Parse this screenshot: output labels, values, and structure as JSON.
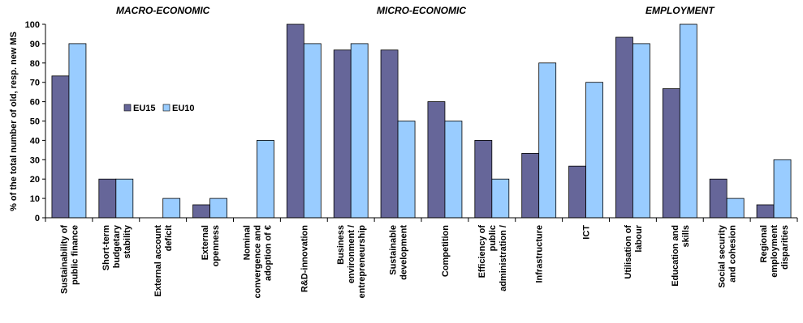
{
  "chart_data": {
    "type": "bar",
    "title": "",
    "ylabel": "% of the total number of old, resp. new MS",
    "xlabel": "",
    "ylim": [
      0,
      100
    ],
    "yticks": [
      0,
      10,
      20,
      30,
      40,
      50,
      60,
      70,
      80,
      90,
      100
    ],
    "grid": false,
    "legend_position": "left-middle",
    "group_labels": [
      {
        "label": "MACRO-ECONOMIC",
        "categories": [
          0,
          4
        ]
      },
      {
        "label": "MICRO-ECONOMIC",
        "categories": [
          5,
          10
        ]
      },
      {
        "label": "EMPLOYMENT",
        "categories": [
          11,
          15
        ]
      }
    ],
    "categories": [
      [
        "Sustainability of",
        "public finance"
      ],
      [
        "Short-term",
        "budgetary",
        "stability"
      ],
      [
        "External account",
        "deficit"
      ],
      [
        "External",
        "openness"
      ],
      [
        "Nominal",
        "convergence and",
        "adoption of €"
      ],
      [
        "R&D-innovation"
      ],
      [
        "Business",
        "environment /",
        "entrepreneurship"
      ],
      [
        "Sustainable",
        "development"
      ],
      [
        "Competition"
      ],
      [
        "Efficiency of",
        "public",
        "administration /"
      ],
      [
        "Infrastructure"
      ],
      [
        "ICT"
      ],
      [
        "Utilisation of",
        "labour"
      ],
      [
        "Education and",
        "skills"
      ],
      [
        "Social security",
        "and cohesion"
      ],
      [
        "Regional",
        "employment",
        "disparities"
      ]
    ],
    "series": [
      {
        "name": "EU15",
        "color": "#666699",
        "values": [
          73.3,
          20,
          0,
          6.7,
          0,
          100,
          86.7,
          86.7,
          60,
          40,
          33.3,
          26.7,
          93.3,
          66.7,
          20,
          6.7
        ]
      },
      {
        "name": "EU10",
        "color": "#99ccff",
        "values": [
          90,
          20,
          10,
          10,
          40,
          90,
          90,
          50,
          50,
          20,
          80,
          70,
          90,
          100,
          10,
          30
        ]
      }
    ]
  }
}
